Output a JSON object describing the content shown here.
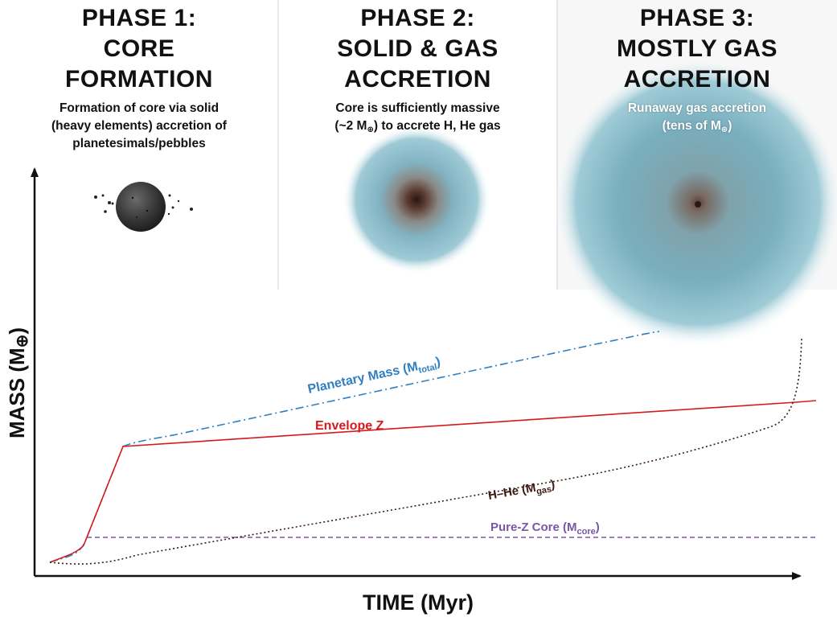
{
  "phases": [
    {
      "title": [
        "PHASE 1:",
        "CORE",
        "FORMATION"
      ],
      "description": [
        "Formation of core via solid",
        "(heavy elements) accretion of",
        "planetesimals/pebbles"
      ]
    },
    {
      "title": [
        "PHASE 2:",
        "SOLID & GAS",
        "ACCRETION"
      ],
      "description_line1": "Core is sufficiently massive",
      "description_line2_pre": "(~2 M",
      "description_line2_symbol": "⊕",
      "description_line2_post": ") to accrete H, He gas"
    },
    {
      "title": [
        "PHASE 3:",
        "MOSTLY GAS",
        "ACCRETION"
      ],
      "description_line1": "Runaway gas accretion",
      "description_line2_pre": "(tens of M",
      "description_line2_symbol": "⊕",
      "description_line2_post": ")"
    }
  ],
  "axes": {
    "x_label": "TIME (Myr)",
    "y_label_pre": "MASS (M",
    "y_label_symbol": "⊕",
    "y_label_post": ")"
  },
  "curves": {
    "total": {
      "label": "Planetary Mass (M",
      "sub": "total",
      "suffix": ")",
      "color": "#2f7fc1"
    },
    "envelope": {
      "label": "Envelope Z",
      "color": "#d7191c"
    },
    "gas": {
      "label": "H–He (M",
      "sub": "gas",
      "suffix": ")",
      "color": "#3a1a12"
    },
    "core": {
      "label": "Pure-Z Core (M",
      "sub": "core",
      "suffix": ")",
      "color": "#7b55a6"
    }
  },
  "colors": {
    "gas_cloud": "#7fb3c2",
    "core_center": "#3a2016",
    "rocky_core": "#3a3a3a"
  },
  "icons": [
    "rocky-core-icon",
    "planetesimal-icon",
    "gas-envelope-icon"
  ]
}
